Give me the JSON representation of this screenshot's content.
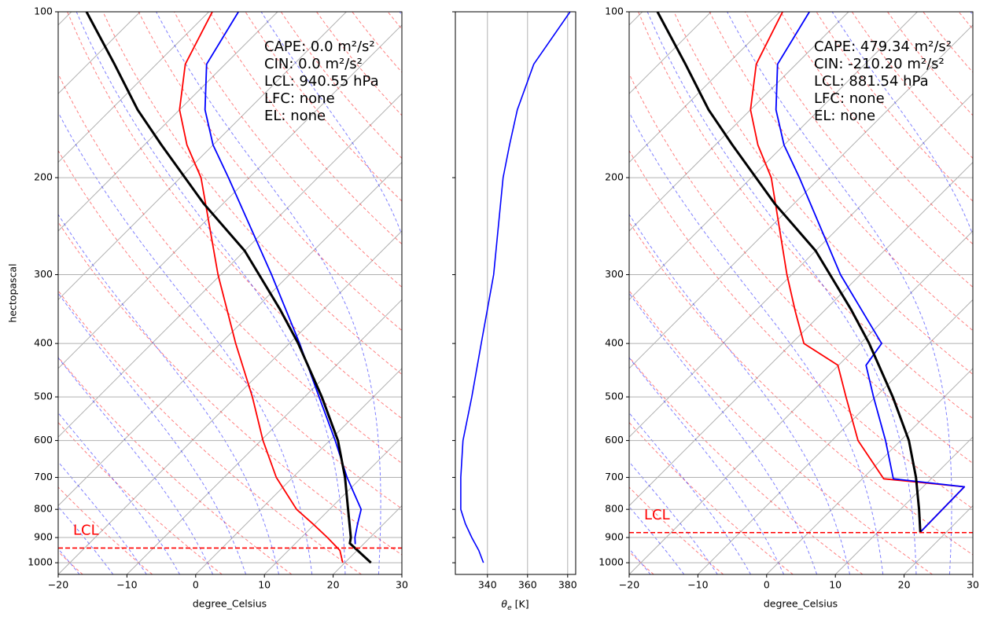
{
  "chart_data": [
    {
      "type": "skewt",
      "xlabel": "degree_Celsius",
      "ylabel": "hectopascal",
      "xlim": [
        -20,
        30
      ],
      "xticks": [
        {
          "value": -20,
          "label": "−20"
        },
        {
          "value": -10,
          "label": "−10"
        },
        0,
        10,
        20,
        30
      ],
      "ylim": [
        1050,
        100
      ],
      "yticks": [
        100,
        200,
        300,
        400,
        500,
        600,
        700,
        800,
        900,
        1000
      ],
      "log_y": true,
      "grid": true,
      "series": [
        {
          "color": "red",
          "linewidth": 1.8,
          "y": [
            100,
            124.5,
            150.6,
            174.5,
            200,
            300,
            400,
            500,
            600,
            700,
            800,
            850,
            900,
            950,
            1000
          ],
          "values": [
            -79.5,
            -75.8,
            -70,
            -63.8,
            -57,
            -40.4,
            -27.8,
            -17.6,
            -9.7,
            -2.4,
            5.2,
            9.7,
            13.8,
            17.5,
            19.7
          ]
        },
        {
          "color": "blue",
          "linewidth": 1.8,
          "y": [
            100,
            124.5,
            150.6,
            174.5,
            200,
            300,
            400,
            500,
            600,
            700,
            800,
            850,
            900,
            925
          ],
          "values": [
            -75.7,
            -72.7,
            -66.3,
            -60,
            -53,
            -32.6,
            -18.5,
            -7.9,
            0.8,
            7.9,
            14.6,
            16.2,
            17.8,
            18.8
          ]
        },
        {
          "color": "black",
          "linewidth": 3,
          "y": [
            100,
            124.5,
            150.6,
            174.5,
            223,
            271.5,
            347,
            400,
            500,
            600,
            700,
            800,
            900,
            922,
            1000
          ],
          "values": [
            -97.8,
            -86.1,
            -76.1,
            -67.5,
            -52.8,
            -40,
            -26.3,
            -18.7,
            -7.5,
            1.2,
            7.6,
            12.7,
            17.2,
            17.9,
            23.8
          ]
        }
      ],
      "lcl_line": {
        "label": "LCL",
        "value": 940.55,
        "color": "red"
      },
      "annotations": [
        "CAPE: 0.0 m²/s²",
        "CIN: 0.0 m²/s²",
        "LCL: 940.55 hPa",
        "LFC: none",
        "EL: none"
      ]
    },
    {
      "type": "line",
      "xlabel_symbol": "θ",
      "xlabel_subscript": "e",
      "xlabel_unit": "[K]",
      "xlim": [
        324,
        384
      ],
      "xticks": [
        340,
        360,
        380
      ],
      "ylim": [
        1050,
        100
      ],
      "yticks": [
        100,
        200,
        300,
        400,
        500,
        600,
        700,
        800,
        900,
        1000
      ],
      "log_y": true,
      "grid": true,
      "series": [
        {
          "color": "blue",
          "linewidth": 1.6,
          "y": [
            100,
            124.5,
            150.6,
            174.5,
            200,
            300,
            400,
            500,
            600,
            700,
            800,
            850,
            900,
            950,
            1000
          ],
          "values": [
            381.2,
            363.1,
            354.9,
            351,
            347.8,
            343.1,
            336.9,
            332.2,
            327.8,
            326.7,
            326.7,
            329,
            332.2,
            335.7,
            338
          ]
        }
      ]
    },
    {
      "type": "skewt",
      "xlabel": "degree_Celsius",
      "xlim": [
        -20,
        30
      ],
      "xticks": [
        {
          "value": -20,
          "label": "−20"
        },
        {
          "value": -10,
          "label": "−10"
        },
        0,
        10,
        20,
        30
      ],
      "ylim": [
        1050,
        100
      ],
      "yticks": [
        100,
        200,
        300,
        400,
        500,
        600,
        700,
        800,
        900,
        1000
      ],
      "log_y": true,
      "grid": true,
      "series": [
        {
          "color": "red",
          "linewidth": 1.8,
          "y": [
            100,
            124.5,
            150.6,
            174.5,
            200,
            300,
            350,
            400,
            438,
            500,
            600,
            704,
            728,
            880
          ],
          "values": [
            -79.6,
            -75.8,
            -70,
            -63.8,
            -57.1,
            -40.7,
            -34.1,
            -28.2,
            -20.1,
            -14.3,
            -6.2,
            3.1,
            16.0,
            16.2
          ]
        },
        {
          "color": "blue",
          "linewidth": 1.8,
          "y": [
            100,
            124.5,
            150.6,
            174.5,
            200,
            300,
            400,
            438,
            500,
            600,
            704,
            728,
            880
          ],
          "values": [
            -75.7,
            -72.7,
            -66.3,
            -60,
            -53,
            -32.9,
            -16.9,
            -16,
            -10.3,
            -2.2,
            4.5,
            16.0,
            16.2
          ]
        },
        {
          "color": "black",
          "linewidth": 3,
          "y": [
            100,
            124.5,
            150.6,
            174.5,
            223,
            271.5,
            347,
            400,
            500,
            600,
            700,
            800,
            880
          ],
          "values": [
            -97.8,
            -86.1,
            -76.1,
            -67.5,
            -52.8,
            -40,
            -26.3,
            -18.7,
            -7.5,
            1.2,
            7.6,
            12.7,
            16.2
          ]
        }
      ],
      "lcl_line": {
        "label": "LCL",
        "value": 881.54,
        "color": "red"
      },
      "annotations": [
        "CAPE: 479.34 m²/s²",
        "CIN: -210.20 m²/s²",
        "LCL: 881.54 hPa",
        "LFC: none",
        "EL: none"
      ]
    }
  ]
}
